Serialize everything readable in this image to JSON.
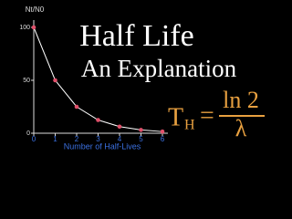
{
  "chart_data": {
    "type": "line",
    "title": "Half Life",
    "subtitle": "An Explanation",
    "formula": {
      "lhs": "T",
      "lhs_subscript": "H",
      "equals": "=",
      "numerator": "ln 2",
      "denominator": "λ"
    },
    "xlabel": "Number of Half-Lives",
    "ylabel": "Nt/N0",
    "x": [
      0,
      1,
      2,
      3,
      4,
      5,
      6
    ],
    "series": [
      {
        "color": "#e0506a",
        "values": [
          100,
          50,
          25,
          12.5,
          6.25,
          3.125,
          1.5625
        ]
      }
    ],
    "xlim": [
      0,
      6
    ],
    "ylim": [
      0,
      100
    ],
    "xticks": [
      0,
      1,
      2,
      3,
      4,
      5,
      6
    ],
    "yticks": [
      0,
      50,
      100
    ]
  }
}
